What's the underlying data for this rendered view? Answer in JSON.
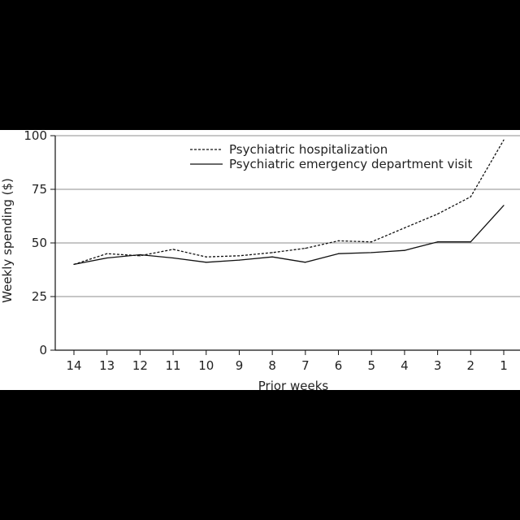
{
  "chart_data": {
    "type": "line",
    "title": "",
    "xlabel": "Prior weeks",
    "ylabel": "Weekly spending ($)",
    "ylim": [
      0,
      100
    ],
    "yticks": [
      0,
      25,
      50,
      75,
      100
    ],
    "grid": true,
    "legend_position": "top-right",
    "categories": [
      "14",
      "13",
      "12",
      "11",
      "10",
      "9",
      "8",
      "7",
      "6",
      "5",
      "4",
      "3",
      "2",
      "1"
    ],
    "series": [
      {
        "name": "Psychiatric hospitalization",
        "style": "dashed",
        "values": [
          40,
          45,
          44,
          47,
          43.5,
          44,
          45.5,
          47.5,
          51,
          50.5,
          57,
          63.5,
          71.5,
          98
        ]
      },
      {
        "name": "Psychiatric emergency department visit",
        "style": "solid",
        "values": [
          40,
          43,
          44.5,
          43,
          41,
          42,
          43.5,
          41,
          45,
          45.5,
          46.5,
          50.5,
          50.5,
          67.5
        ]
      }
    ]
  },
  "colors": {
    "background": "#000000",
    "panel": "#ffffff",
    "line": "#111111",
    "grid": "#8c8c8c"
  }
}
